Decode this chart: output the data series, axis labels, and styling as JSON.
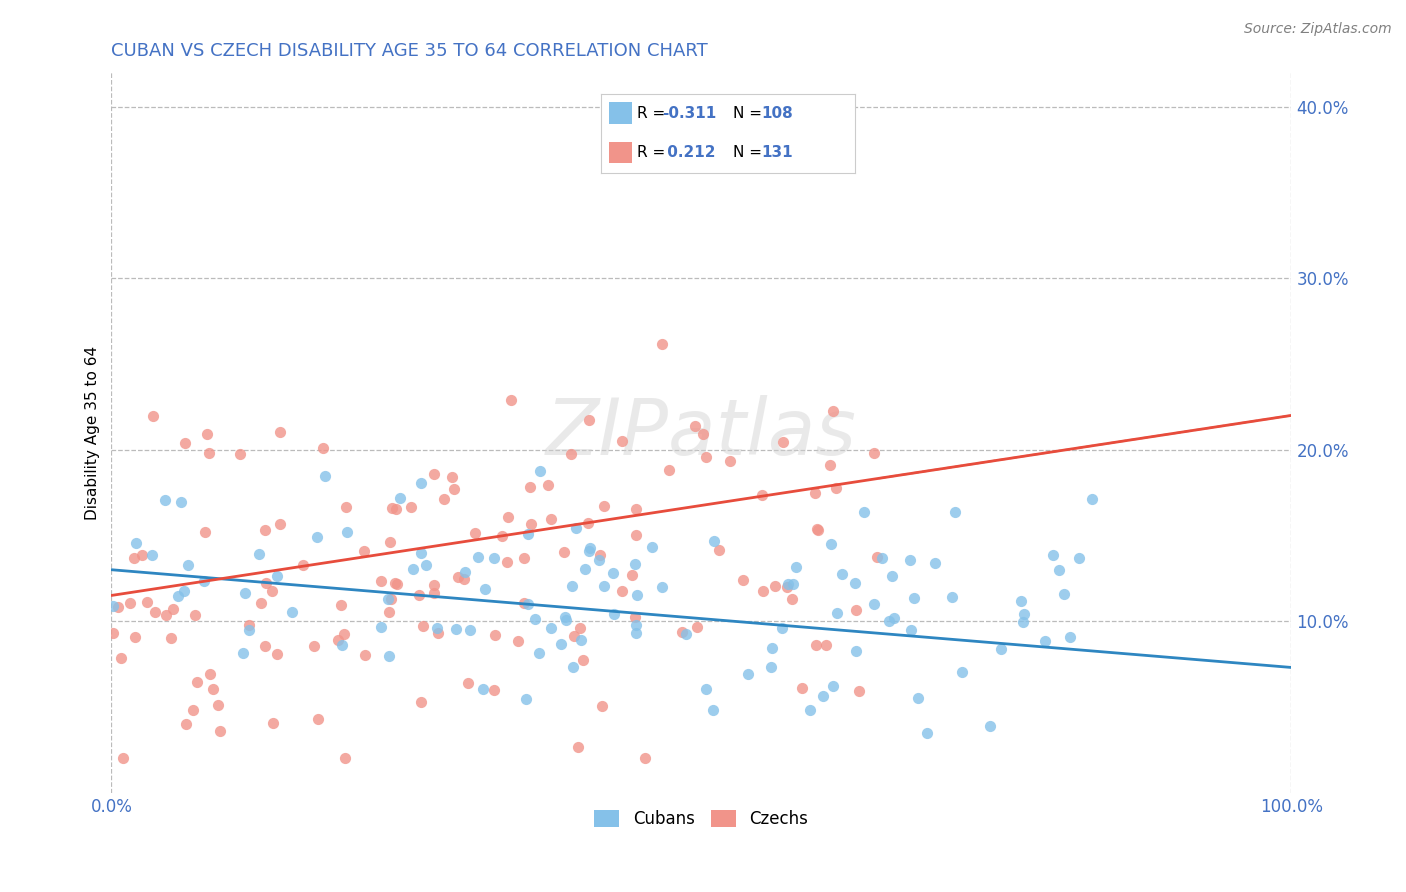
{
  "title": "CUBAN VS CZECH DISABILITY AGE 35 TO 64 CORRELATION CHART",
  "source": "Source: ZipAtlas.com",
  "ylabel": "Disability Age 35 to 64",
  "xlim": [
    0.0,
    1.0
  ],
  "ylim": [
    0.0,
    0.42
  ],
  "yticks": [
    0.1,
    0.2,
    0.3,
    0.4
  ],
  "ytick_labels": [
    "10.0%",
    "20.0%",
    "30.0%",
    "40.0%"
  ],
  "legend_labels": [
    "Cubans",
    "Czechs"
  ],
  "blue_color": "#85C1E9",
  "pink_color": "#F1948A",
  "blue_line_color": "#2E86C1",
  "pink_line_color": "#E74C3C",
  "R_blue": -0.311,
  "N_blue": 108,
  "R_pink": 0.212,
  "N_pink": 131,
  "title_color": "#4472C4",
  "stat_color": "#4472C4",
  "watermark": "ZIPatlas",
  "background_color": "#FFFFFF",
  "grid_color": "#BBBBBB"
}
